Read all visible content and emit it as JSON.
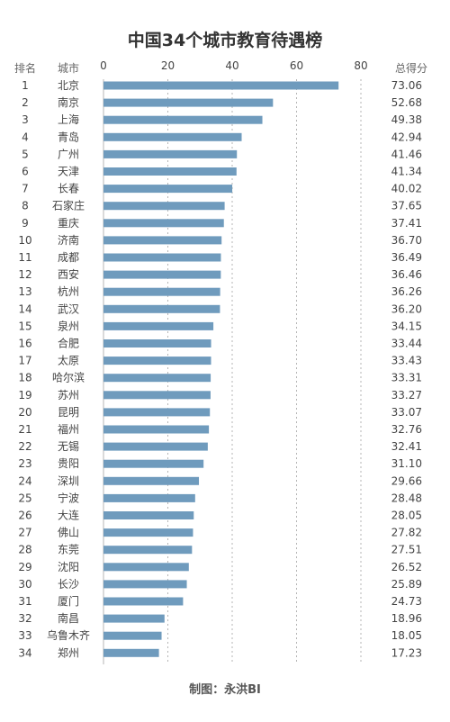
{
  "title": "中国34个城市教育待遇榜",
  "credit": "制图：永洪BI",
  "colors": {
    "bar": "#6f9bbd",
    "grid": "#b5b5b5",
    "text": "#444444",
    "title": "#333333"
  },
  "chart_data": {
    "type": "bar",
    "orientation": "horizontal",
    "column_headers": {
      "rank": "排名",
      "city": "城市",
      "score": "总得分"
    },
    "xlim": [
      0,
      80
    ],
    "x_ticks": [
      0,
      20,
      40,
      60,
      80
    ],
    "grid": true,
    "ranks": [
      1,
      2,
      3,
      4,
      5,
      6,
      7,
      8,
      9,
      10,
      11,
      12,
      13,
      14,
      15,
      16,
      17,
      18,
      19,
      20,
      21,
      22,
      23,
      24,
      25,
      26,
      27,
      28,
      29,
      30,
      31,
      32,
      33,
      34
    ],
    "categories": [
      "北京",
      "南京",
      "上海",
      "青岛",
      "广州",
      "天津",
      "长春",
      "石家庄",
      "重庆",
      "济南",
      "成都",
      "西安",
      "杭州",
      "武汉",
      "泉州",
      "合肥",
      "太原",
      "哈尔滨",
      "苏州",
      "昆明",
      "福州",
      "无锡",
      "贵阳",
      "深圳",
      "宁波",
      "大连",
      "佛山",
      "东莞",
      "沈阳",
      "长沙",
      "厦门",
      "南昌",
      "乌鲁木齐",
      "郑州"
    ],
    "values": [
      73.06,
      52.68,
      49.38,
      42.94,
      41.46,
      41.34,
      40.02,
      37.65,
      37.41,
      36.7,
      36.49,
      36.46,
      36.26,
      36.2,
      34.15,
      33.44,
      33.43,
      33.31,
      33.27,
      33.07,
      32.76,
      32.41,
      31.1,
      29.66,
      28.48,
      28.05,
      27.82,
      27.51,
      26.52,
      25.89,
      24.73,
      18.96,
      18.05,
      17.23
    ],
    "value_labels": [
      "73.06",
      "52.68",
      "49.38",
      "42.94",
      "41.46",
      "41.34",
      "40.02",
      "37.65",
      "37.41",
      "36.70",
      "36.49",
      "36.46",
      "36.26",
      "36.20",
      "34.15",
      "33.44",
      "33.43",
      "33.31",
      "33.27",
      "33.07",
      "32.76",
      "32.41",
      "31.10",
      "29.66",
      "28.48",
      "28.05",
      "27.82",
      "27.51",
      "26.52",
      "25.89",
      "24.73",
      "18.96",
      "18.05",
      "17.23"
    ]
  }
}
